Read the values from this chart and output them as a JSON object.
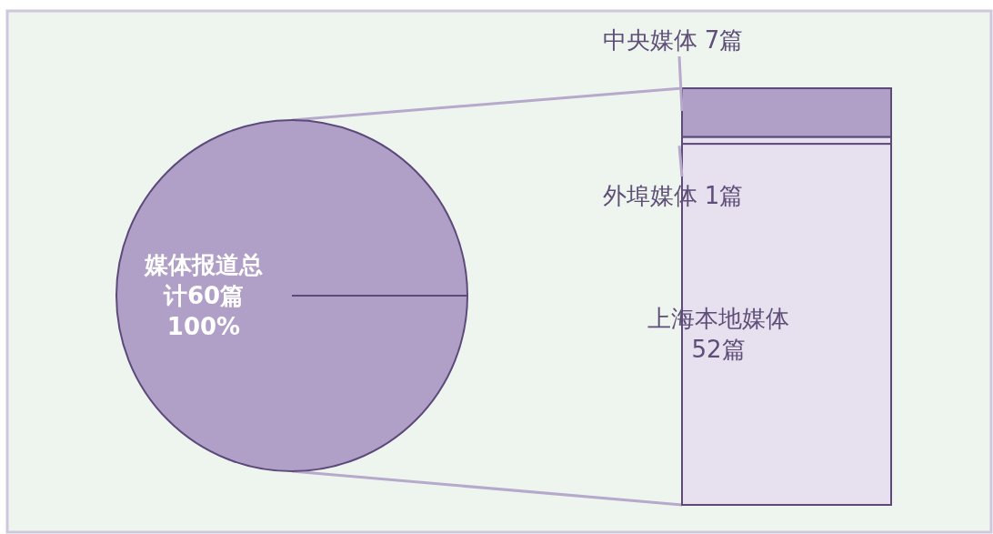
{
  "chart_data": [
    {
      "type": "pie",
      "categories": [
        "媒体报道总计60篇"
      ],
      "values": [
        100
      ],
      "value_labels": [
        "100%"
      ],
      "colors": [
        "#b09fc6"
      ]
    },
    {
      "type": "bar",
      "stacked": true,
      "categories": [
        null
      ],
      "series": [
        {
          "name": "上海本地媒体",
          "color": "#e7e0ee",
          "values": [
            52
          ],
          "value_labels": [
            "52篇"
          ]
        },
        {
          "name": "外埠媒体",
          "color": "#e7e0ee",
          "values": [
            1
          ],
          "value_labels": [
            "1篇"
          ]
        },
        {
          "name": "中央媒体",
          "color": "#b09fc6",
          "values": [
            7
          ],
          "value_labels": [
            "7篇"
          ]
        }
      ]
    }
  ]
}
